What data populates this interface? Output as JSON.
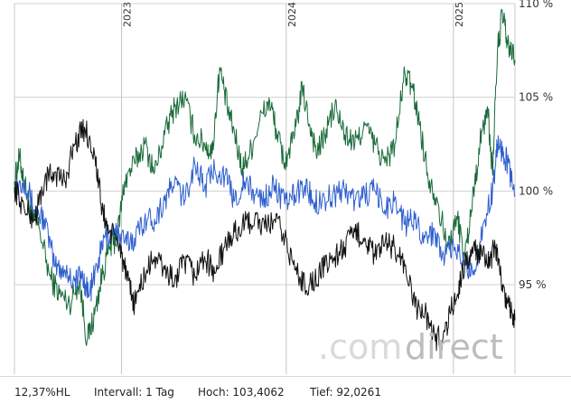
{
  "chart_data": {
    "type": "line",
    "x_ticks": [
      "2023",
      "2024",
      "2025"
    ],
    "y_ticks": [
      "95 %",
      "100 %",
      "105 %",
      "110 %"
    ],
    "ylim": [
      91.0,
      110.0
    ],
    "grid": true,
    "series": [
      {
        "color": "#1a6b3a",
        "points": [
          [
            0,
            100.5
          ],
          [
            0.01,
            101.8
          ],
          [
            0.02,
            100.4
          ],
          [
            0.035,
            98.6
          ],
          [
            0.05,
            98.0
          ],
          [
            0.07,
            95.5
          ],
          [
            0.09,
            94.5
          ],
          [
            0.11,
            94.0
          ],
          [
            0.13,
            95.2
          ],
          [
            0.145,
            92.0
          ],
          [
            0.16,
            93.4
          ],
          [
            0.175,
            95.5
          ],
          [
            0.19,
            97.0
          ],
          [
            0.205,
            97.5
          ],
          [
            0.22,
            100.5
          ],
          [
            0.24,
            101.5
          ],
          [
            0.26,
            102.5
          ],
          [
            0.28,
            101.0
          ],
          [
            0.3,
            103.0
          ],
          [
            0.32,
            104.5
          ],
          [
            0.34,
            105.0
          ],
          [
            0.36,
            103.0
          ],
          [
            0.38,
            102.5
          ],
          [
            0.395,
            102.0
          ],
          [
            0.41,
            106.6
          ],
          [
            0.425,
            104.5
          ],
          [
            0.44,
            103.0
          ],
          [
            0.455,
            101.2
          ],
          [
            0.47,
            102.0
          ],
          [
            0.49,
            103.8
          ],
          [
            0.51,
            104.8
          ],
          [
            0.525,
            103.0
          ],
          [
            0.54,
            101.5
          ],
          [
            0.56,
            103.0
          ],
          [
            0.575,
            105.5
          ],
          [
            0.59,
            103.5
          ],
          [
            0.605,
            102.0
          ],
          [
            0.62,
            103.0
          ],
          [
            0.64,
            104.5
          ],
          [
            0.66,
            103.0
          ],
          [
            0.68,
            102.5
          ],
          [
            0.7,
            103.5
          ],
          [
            0.72,
            102.5
          ],
          [
            0.74,
            101.5
          ],
          [
            0.76,
            102.5
          ],
          [
            0.78,
            106.3
          ],
          [
            0.795,
            105.5
          ],
          [
            0.81,
            103.5
          ],
          [
            0.825,
            101.0
          ],
          [
            0.845,
            99.5
          ],
          [
            0.865,
            97.0
          ],
          [
            0.885,
            98.5
          ],
          [
            0.9,
            96.5
          ],
          [
            0.915,
            99.5
          ],
          [
            0.93,
            102.5
          ],
          [
            0.945,
            104.5
          ],
          [
            0.955,
            101.0
          ],
          [
            0.965,
            107.5
          ],
          [
            0.975,
            109.5
          ],
          [
            0.985,
            107.8
          ],
          [
            1.0,
            107.0
          ]
        ]
      },
      {
        "color": "#2f5fcf",
        "points": [
          [
            0,
            100.2
          ],
          [
            0.02,
            100.6
          ],
          [
            0.04,
            99.0
          ],
          [
            0.06,
            98.5
          ],
          [
            0.08,
            96.0
          ],
          [
            0.1,
            95.8
          ],
          [
            0.12,
            95.2
          ],
          [
            0.135,
            95.5
          ],
          [
            0.15,
            94.5
          ],
          [
            0.165,
            96.0
          ],
          [
            0.18,
            97.5
          ],
          [
            0.2,
            98.0
          ],
          [
            0.22,
            97.2
          ],
          [
            0.24,
            97.5
          ],
          [
            0.26,
            98.5
          ],
          [
            0.28,
            98.5
          ],
          [
            0.3,
            99.5
          ],
          [
            0.32,
            100.5
          ],
          [
            0.34,
            99.5
          ],
          [
            0.36,
            101.5
          ],
          [
            0.38,
            100.2
          ],
          [
            0.4,
            101.2
          ],
          [
            0.42,
            100.8
          ],
          [
            0.44,
            99.5
          ],
          [
            0.46,
            100.5
          ],
          [
            0.48,
            99.8
          ],
          [
            0.5,
            99.6
          ],
          [
            0.52,
            100.3
          ],
          [
            0.54,
            99.3
          ],
          [
            0.56,
            99.8
          ],
          [
            0.58,
            100.3
          ],
          [
            0.6,
            99.4
          ],
          [
            0.62,
            99.6
          ],
          [
            0.64,
            99.8
          ],
          [
            0.66,
            100.1
          ],
          [
            0.68,
            99.5
          ],
          [
            0.7,
            99.8
          ],
          [
            0.72,
            100.0
          ],
          [
            0.74,
            99.0
          ],
          [
            0.76,
            99.6
          ],
          [
            0.78,
            98.2
          ],
          [
            0.8,
            98.5
          ],
          [
            0.82,
            97.5
          ],
          [
            0.84,
            97.8
          ],
          [
            0.86,
            96.5
          ],
          [
            0.88,
            97.0
          ],
          [
            0.9,
            96.0
          ],
          [
            0.92,
            95.8
          ],
          [
            0.94,
            98.5
          ],
          [
            0.955,
            100.0
          ],
          [
            0.965,
            102.5
          ],
          [
            0.975,
            102.2
          ],
          [
            0.985,
            101.5
          ],
          [
            1.0,
            99.7
          ]
        ]
      },
      {
        "color": "#111111",
        "points": [
          [
            0,
            100.2
          ],
          [
            0.02,
            99.0
          ],
          [
            0.04,
            98.5
          ],
          [
            0.06,
            100.5
          ],
          [
            0.08,
            101.0
          ],
          [
            0.1,
            100.5
          ],
          [
            0.12,
            102.5
          ],
          [
            0.14,
            103.4
          ],
          [
            0.16,
            102.0
          ],
          [
            0.175,
            99.0
          ],
          [
            0.19,
            97.8
          ],
          [
            0.21,
            97.2
          ],
          [
            0.225,
            95.2
          ],
          [
            0.24,
            94.0
          ],
          [
            0.26,
            95.5
          ],
          [
            0.28,
            96.5
          ],
          [
            0.3,
            95.8
          ],
          [
            0.32,
            95.2
          ],
          [
            0.34,
            96.2
          ],
          [
            0.36,
            95.5
          ],
          [
            0.38,
            96.5
          ],
          [
            0.4,
            95.6
          ],
          [
            0.42,
            97.0
          ],
          [
            0.44,
            97.8
          ],
          [
            0.46,
            98.2
          ],
          [
            0.48,
            98.5
          ],
          [
            0.5,
            98.0
          ],
          [
            0.52,
            98.5
          ],
          [
            0.54,
            97.5
          ],
          [
            0.56,
            95.8
          ],
          [
            0.58,
            95.0
          ],
          [
            0.6,
            95.2
          ],
          [
            0.62,
            96.0
          ],
          [
            0.64,
            96.5
          ],
          [
            0.66,
            97.0
          ],
          [
            0.68,
            97.8
          ],
          [
            0.7,
            97.5
          ],
          [
            0.72,
            96.5
          ],
          [
            0.74,
            97.2
          ],
          [
            0.76,
            97.0
          ],
          [
            0.78,
            96.0
          ],
          [
            0.8,
            93.8
          ],
          [
            0.82,
            93.5
          ],
          [
            0.84,
            92.2
          ],
          [
            0.855,
            92.0
          ],
          [
            0.87,
            93.5
          ],
          [
            0.885,
            94.5
          ],
          [
            0.9,
            96.2
          ],
          [
            0.92,
            96.8
          ],
          [
            0.935,
            96.5
          ],
          [
            0.95,
            96.0
          ],
          [
            0.96,
            97.2
          ],
          [
            0.97,
            95.5
          ],
          [
            0.985,
            94.0
          ],
          [
            1.0,
            93.1
          ]
        ]
      }
    ]
  },
  "footer": {
    "range": "12,37%HL",
    "interval": "Intervall: 1 Tag",
    "high": "Hoch: 103,4062",
    "low": "Tief: 92,0261"
  },
  "watermark": {
    "part1": ".com",
    "part2": "direct"
  }
}
